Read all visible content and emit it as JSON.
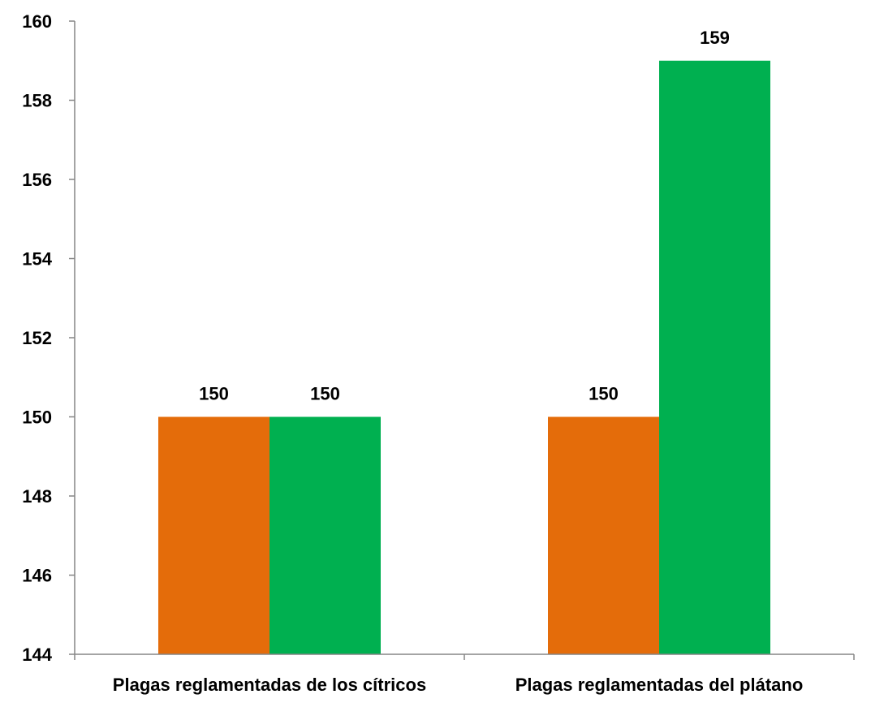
{
  "chart_data": {
    "type": "bar",
    "title": "",
    "xlabel": "",
    "ylabel": "",
    "categories": [
      "Plagas reglamentadas de los cítricos",
      "Plagas reglamentadas del plátano"
    ],
    "series": [
      {
        "values": [
          150,
          150
        ],
        "color": "#E46C0A"
      },
      {
        "values": [
          150,
          159
        ],
        "color": "#00B050"
      }
    ],
    "data_labels": [
      [
        "150",
        "150"
      ],
      [
        "150",
        "159"
      ]
    ],
    "ylim": [
      144,
      160
    ],
    "yticks": [
      "144",
      "146",
      "148",
      "150",
      "152",
      "154",
      "156",
      "158",
      "160"
    ],
    "grid": false,
    "legend": "none"
  }
}
